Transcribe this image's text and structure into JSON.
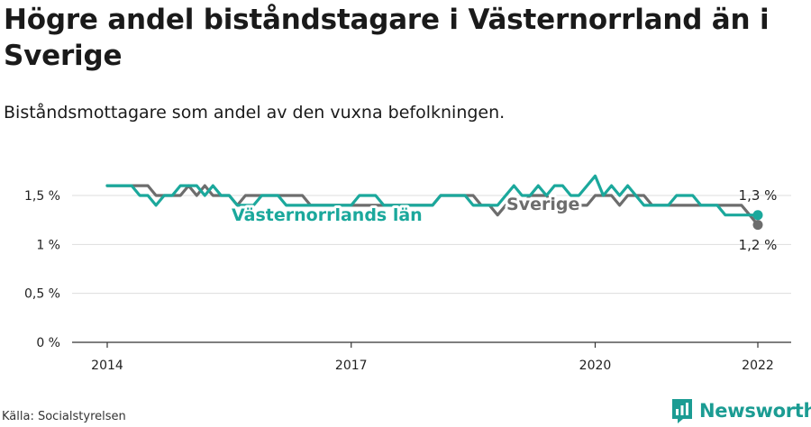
{
  "title": "Högre andel biståndstagare i Västernorrland än i Sverige",
  "subtitle": "Biståndsmottagare som andel av den vuxna befolkningen.",
  "source": "Källa: Socialstyrelsen",
  "brand": {
    "name": "Newsworthy",
    "logo_icon": "newsworthy-logo-icon",
    "color": "#1b9c93"
  },
  "chart_data": {
    "type": "line",
    "title": "Högre andel biståndstagare i Västernorrland än i Sverige",
    "subtitle": "Biståndsmottagare som andel av den vuxna befolkningen.",
    "xlabel": "",
    "ylabel": "",
    "x_range": [
      2013.75,
      2022.35
    ],
    "ylim": [
      0,
      1.8
    ],
    "x_ticks": [
      2014,
      2017,
      2020,
      2022
    ],
    "x_tick_labels": [
      "2014",
      "2017",
      "2020",
      "2022"
    ],
    "y_ticks": [
      0,
      0.5,
      1,
      1.5
    ],
    "y_tick_labels": [
      "0 %",
      "0,5 %",
      "1 %",
      "1,5 %"
    ],
    "grid": true,
    "legend": "inline labels on lines",
    "series": [
      {
        "name": "Sverige",
        "color": "#6d6d6d",
        "end_label": "1,2 %",
        "x": [
          2014.0,
          2014.1,
          2014.2,
          2014.3,
          2014.4,
          2014.5,
          2014.6,
          2014.7,
          2014.8,
          2014.9,
          2015.0,
          2015.1,
          2015.2,
          2015.3,
          2015.4,
          2015.5,
          2015.6,
          2015.7,
          2015.8,
          2015.9,
          2016.0,
          2016.1,
          2016.2,
          2016.3,
          2016.4,
          2016.5,
          2016.6,
          2016.7,
          2016.8,
          2016.9,
          2017.0,
          2017.1,
          2017.2,
          2017.3,
          2017.4,
          2017.5,
          2017.6,
          2017.7,
          2017.8,
          2017.9,
          2018.0,
          2018.1,
          2018.2,
          2018.3,
          2018.4,
          2018.5,
          2018.6,
          2018.7,
          2018.8,
          2018.9,
          2019.0,
          2019.1,
          2019.2,
          2019.3,
          2019.4,
          2019.5,
          2019.6,
          2019.7,
          2019.8,
          2019.9,
          2020.0,
          2020.1,
          2020.2,
          2020.3,
          2020.4,
          2020.5,
          2020.6,
          2020.7,
          2020.8,
          2020.9,
          2021.0,
          2021.1,
          2021.2,
          2021.3,
          2021.4,
          2021.5,
          2021.6,
          2021.7,
          2021.8,
          2021.9,
          2022.0
        ],
        "y": [
          1.6,
          1.6,
          1.6,
          1.6,
          1.6,
          1.6,
          1.5,
          1.5,
          1.5,
          1.5,
          1.6,
          1.5,
          1.6,
          1.5,
          1.5,
          1.5,
          1.4,
          1.5,
          1.5,
          1.5,
          1.5,
          1.5,
          1.5,
          1.5,
          1.5,
          1.4,
          1.4,
          1.4,
          1.4,
          1.4,
          1.4,
          1.4,
          1.4,
          1.4,
          1.4,
          1.4,
          1.4,
          1.4,
          1.4,
          1.4,
          1.4,
          1.5,
          1.5,
          1.5,
          1.5,
          1.5,
          1.4,
          1.4,
          1.3,
          1.4,
          1.4,
          1.4,
          1.5,
          1.5,
          1.5,
          1.4,
          1.4,
          1.4,
          1.4,
          1.4,
          1.5,
          1.5,
          1.5,
          1.4,
          1.5,
          1.5,
          1.5,
          1.4,
          1.4,
          1.4,
          1.4,
          1.4,
          1.4,
          1.4,
          1.4,
          1.4,
          1.4,
          1.4,
          1.4,
          1.3,
          1.2
        ]
      },
      {
        "name": "Västernorrlands län",
        "color": "#1ba89c",
        "end_label": "1,3 %",
        "x": [
          2014.0,
          2014.1,
          2014.2,
          2014.3,
          2014.4,
          2014.5,
          2014.6,
          2014.7,
          2014.8,
          2014.9,
          2015.0,
          2015.1,
          2015.2,
          2015.3,
          2015.4,
          2015.5,
          2015.6,
          2015.7,
          2015.8,
          2015.9,
          2016.0,
          2016.1,
          2016.2,
          2016.3,
          2016.4,
          2016.5,
          2016.6,
          2016.7,
          2016.8,
          2016.9,
          2017.0,
          2017.1,
          2017.2,
          2017.3,
          2017.4,
          2017.5,
          2017.6,
          2017.7,
          2017.8,
          2017.9,
          2018.0,
          2018.1,
          2018.2,
          2018.3,
          2018.4,
          2018.5,
          2018.6,
          2018.7,
          2018.8,
          2018.9,
          2019.0,
          2019.1,
          2019.2,
          2019.3,
          2019.4,
          2019.5,
          2019.6,
          2019.7,
          2019.8,
          2019.9,
          2020.0,
          2020.1,
          2020.2,
          2020.3,
          2020.4,
          2020.5,
          2020.6,
          2020.7,
          2020.8,
          2020.9,
          2021.0,
          2021.1,
          2021.2,
          2021.3,
          2021.4,
          2021.5,
          2021.6,
          2021.7,
          2021.8,
          2021.9,
          2022.0
        ],
        "y": [
          1.6,
          1.6,
          1.6,
          1.6,
          1.5,
          1.5,
          1.4,
          1.5,
          1.5,
          1.6,
          1.6,
          1.6,
          1.5,
          1.6,
          1.5,
          1.5,
          1.4,
          1.4,
          1.4,
          1.5,
          1.5,
          1.5,
          1.4,
          1.4,
          1.4,
          1.4,
          1.4,
          1.4,
          1.4,
          1.4,
          1.4,
          1.5,
          1.5,
          1.5,
          1.4,
          1.4,
          1.4,
          1.4,
          1.4,
          1.4,
          1.4,
          1.5,
          1.5,
          1.5,
          1.5,
          1.4,
          1.4,
          1.4,
          1.4,
          1.5,
          1.6,
          1.5,
          1.5,
          1.6,
          1.5,
          1.6,
          1.6,
          1.5,
          1.5,
          1.6,
          1.7,
          1.5,
          1.6,
          1.5,
          1.6,
          1.5,
          1.4,
          1.4,
          1.4,
          1.4,
          1.5,
          1.5,
          1.5,
          1.4,
          1.4,
          1.4,
          1.3,
          1.3,
          1.3,
          1.3,
          1.3
        ]
      }
    ]
  }
}
